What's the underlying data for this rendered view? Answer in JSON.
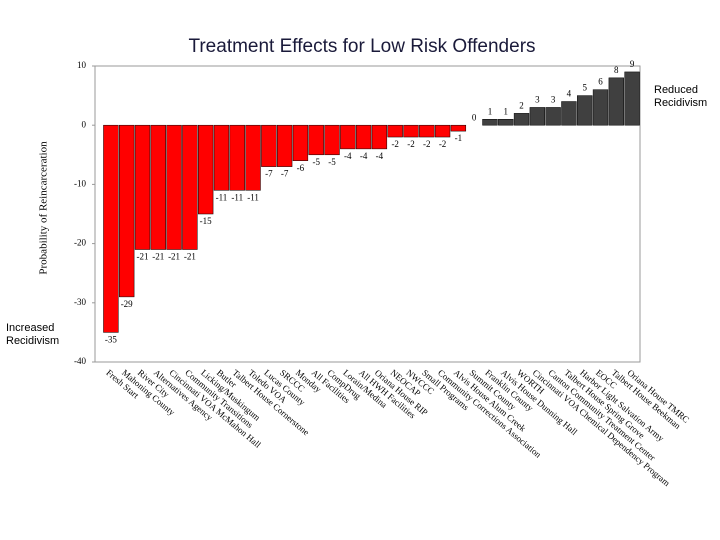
{
  "chart_data": {
    "type": "bar",
    "title": "Treatment Effects for Low Risk Offenders",
    "y_label": "Probability of Reincarceration",
    "categories": [
      "Fresh Start",
      "Mahoning County",
      "River City",
      "Alternatives Agency",
      "Cincinnati VOA McMahon Hall",
      "Community Transitions",
      "Licking/Muskingum",
      "Butler",
      "Talbert House Cornerstone",
      "Toledo VOA",
      "Lucas County",
      "SRCCC",
      "Monday",
      "All Facilities",
      "CompDrug",
      "Lorain/Medina",
      "All HWH Facilities",
      "Oriana House RIP",
      "NEOCAP",
      "NWCCC",
      "Small Programs",
      "Community Corrections Association",
      "Alvis House Alum Creek",
      "Summit County",
      "Franklin County",
      "Alvis House Dunning Hall",
      "WORTH",
      "Cincinnati VOA Chemical Dependency Program",
      "Canton Community Treatment Center",
      "Talbert House Spring Grove",
      "Harbor Light Salvation Army",
      "EOCC",
      "Talbert House Beekman",
      "Oriana House TMRC"
    ],
    "values": [
      -35,
      -29,
      -21,
      -21,
      -21,
      -21,
      -15,
      -11,
      -11,
      -11,
      -7,
      -7,
      -6,
      -5,
      -5,
      -4,
      -4,
      -4,
      -2,
      -2,
      -2,
      -2,
      -1,
      0,
      1,
      1,
      2,
      3,
      3,
      4,
      5,
      6,
      8,
      9
    ],
    "negative_color": "#ff0000",
    "positive_color": "#404040",
    "ylim": [
      -40,
      10
    ],
    "yticks": [
      -40,
      -30,
      -20,
      -10,
      0,
      10
    ],
    "annotations": [
      "Reduced Recidivism",
      "Increased Recidivism"
    ]
  }
}
